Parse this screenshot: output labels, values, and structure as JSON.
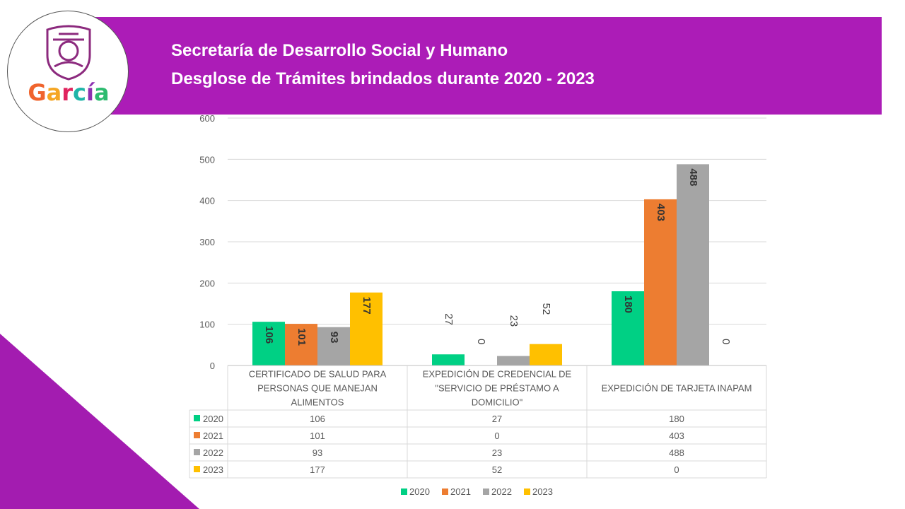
{
  "header": {
    "line1": "Secretaría de Desarrollo Social y Humano",
    "line2": "Desglose de Trámites brindados durante 2020 - 2023"
  },
  "logo": {
    "text": "García",
    "letter_colors": [
      "#f0642d",
      "#f5a623",
      "#e0245e",
      "#1fb5a8",
      "#8c2fb0",
      "#2dbb6f"
    ],
    "shield_color": "#8c2a7e"
  },
  "colors": {
    "banner": "#ac1cb7",
    "triangle": "#a31cb0"
  },
  "chart_data": {
    "type": "bar",
    "categories": [
      [
        "CERTIFICADO DE SALUD PARA",
        "PERSONAS QUE MANEJAN",
        "ALIMENTOS"
      ],
      [
        "EXPEDICIÓN DE CREDENCIAL DE",
        "\"SERVICIO DE PRÉSTAMO A",
        "DOMICILIO\""
      ],
      [
        "EXPEDICIÓN DE TARJETA INAPAM"
      ]
    ],
    "series": [
      {
        "name": "2020",
        "color": "#00d084",
        "values": [
          106,
          27,
          180
        ]
      },
      {
        "name": "2021",
        "color": "#ed7d31",
        "values": [
          101,
          0,
          403
        ]
      },
      {
        "name": "2022",
        "color": "#a5a5a5",
        "values": [
          93,
          23,
          488
        ]
      },
      {
        "name": "2023",
        "color": "#ffc000",
        "values": [
          177,
          52,
          0
        ]
      }
    ],
    "ylim": [
      0,
      600
    ],
    "yticks": [
      0,
      100,
      200,
      300,
      400,
      500,
      600
    ],
    "grid": true,
    "legend_position": "bottom",
    "data_table": true,
    "data_labels": "rotated-vertical"
  }
}
